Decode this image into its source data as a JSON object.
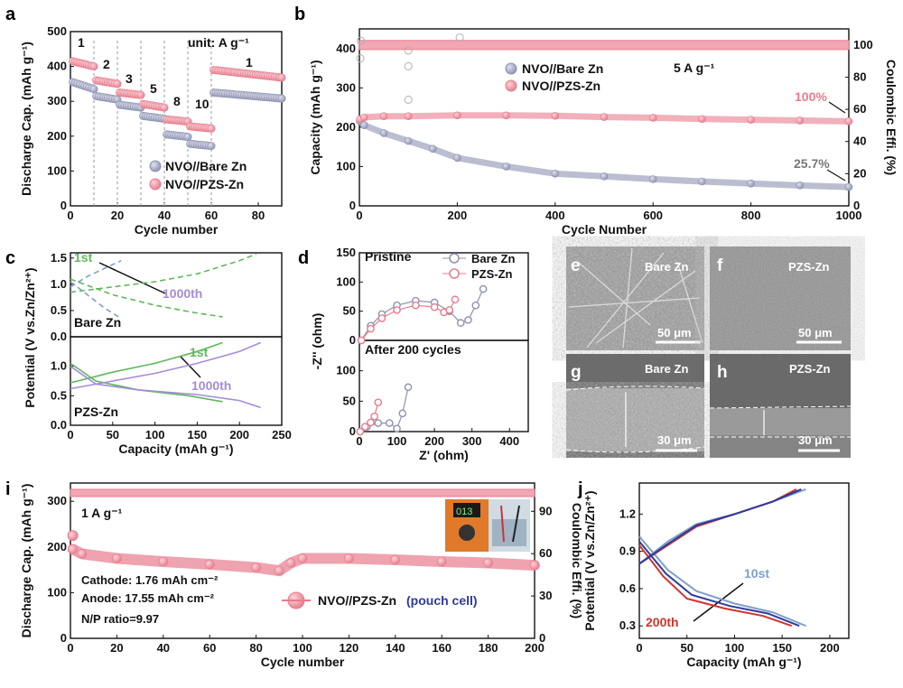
{
  "colors": {
    "pink": "#e77c8d",
    "gray": "#8e93b0",
    "green": "#5fb85a",
    "lavender": "#a58cd6",
    "slate": "#7fa0c8",
    "darkred": "#d0342c",
    "navy": "#2e3a9e"
  },
  "panels": {
    "a": {
      "letter": "a",
      "unit": "unit: A g⁻¹",
      "rates": [
        "1",
        "2",
        "3",
        "5",
        "8",
        "10",
        "1"
      ]
    },
    "b": {
      "letter": "b",
      "rate_note": "5 A g⁻¹",
      "pct_pzs": "100%",
      "pct_bare": "25.7%"
    },
    "c": {
      "letter": "c",
      "top_label": "Bare Zn",
      "bottom_label": "PZS-Zn",
      "first": "1st",
      "last": "1000th"
    },
    "d": {
      "letter": "d",
      "top_label": "Pristine",
      "bottom_label": "After 200 cycles"
    },
    "sem": {
      "e": {
        "letter": "e",
        "caption": "Bare Zn",
        "scale": "50 μm"
      },
      "f": {
        "letter": "f",
        "caption": "PZS-Zn",
        "scale": "50 μm"
      },
      "g": {
        "letter": "g",
        "caption": "Bare Zn",
        "scale": "30 μm"
      },
      "h": {
        "letter": "h",
        "caption": "PZS-Zn",
        "scale": "30 μm"
      }
    },
    "i": {
      "letter": "i",
      "rate_note": "1 A g⁻¹",
      "cathode": "Cathode: 1.76 mAh cm⁻²",
      "anode": "Anode: 17.55 mAh cm⁻²",
      "np": "N/P ratio=9.97",
      "legend_main": "NVO//PZS-Zn",
      "legend_sub": "(pouch cell)"
    },
    "j": {
      "letter": "j",
      "first": "10st",
      "last": "200th"
    }
  },
  "chart_data": [
    {
      "id": "a",
      "type": "scatter",
      "xlabel": "Cycle number",
      "ylabel": "Discharge Cap. (mAh g⁻¹)",
      "xlim": [
        0,
        90
      ],
      "ylim": [
        0,
        500
      ],
      "xticks": [
        0,
        20,
        40,
        60,
        80
      ],
      "yticks": [
        0,
        100,
        200,
        300,
        400,
        500
      ],
      "segments": [
        {
          "rate": "1",
          "from": 1,
          "to": 10
        },
        {
          "rate": "2",
          "from": 11,
          "to": 20
        },
        {
          "rate": "3",
          "from": 21,
          "to": 30
        },
        {
          "rate": "5",
          "from": 31,
          "to": 40
        },
        {
          "rate": "8",
          "from": 41,
          "to": 50
        },
        {
          "rate": "10",
          "from": 51,
          "to": 60
        },
        {
          "rate": "1",
          "from": 61,
          "to": 90
        }
      ],
      "series": [
        {
          "name": "NVO//Bare Zn",
          "color": "#8e93b0",
          "levels": [
            [
              355,
              335
            ],
            [
              315,
              305
            ],
            [
              290,
              282
            ],
            [
              258,
              250
            ],
            [
              205,
              198
            ],
            [
              178,
              172
            ],
            [
              325,
              308
            ]
          ]
        },
        {
          "name": "NVO//PZS-Zn",
          "color": "#e77c8d",
          "levels": [
            [
              415,
              400
            ],
            [
              360,
              350
            ],
            [
              325,
              318
            ],
            [
              292,
              282
            ],
            [
              248,
              242
            ],
            [
              228,
              222
            ],
            [
              390,
              368
            ]
          ]
        }
      ]
    },
    {
      "id": "b",
      "type": "scatter",
      "xlabel": "Cycle Number",
      "ylabel": "Capacity (mAh g⁻¹)",
      "y2label": "Coulombic Effi. (%)",
      "xlim": [
        0,
        1000
      ],
      "ylim": [
        0,
        450
      ],
      "y2lim": [
        0,
        110
      ],
      "xticks": [
        0,
        200,
        400,
        600,
        800,
        1000
      ],
      "yticks": [
        0,
        100,
        200,
        300,
        400
      ],
      "y2ticks": [
        0,
        20,
        40,
        60,
        80,
        100
      ],
      "series": [
        {
          "name": "NVO//Bare Zn",
          "color": "#8e93b0",
          "x": [
            1,
            10,
            50,
            100,
            150,
            200,
            300,
            400,
            500,
            600,
            700,
            800,
            900,
            1000
          ],
          "y": [
            215,
            205,
            185,
            165,
            145,
            122,
            100,
            82,
            75,
            68,
            62,
            57,
            52,
            48
          ]
        },
        {
          "name": "NVO//PZS-Zn",
          "color": "#e77c8d",
          "x": [
            1,
            10,
            50,
            100,
            200,
            300,
            400,
            500,
            600,
            700,
            800,
            900,
            1000
          ],
          "y": [
            220,
            225,
            228,
            228,
            230,
            230,
            229,
            226,
            224,
            221,
            219,
            217,
            215
          ]
        },
        {
          "name": "CE",
          "axis": "y2",
          "color": "#e77c8d",
          "value": 100
        }
      ],
      "outliers": [
        {
          "x": 2,
          "y": 375
        },
        {
          "x": 3,
          "y": 420
        },
        {
          "x": 100,
          "y": 395
        },
        {
          "x": 100,
          "y": 355
        },
        {
          "x": 100,
          "y": 270
        },
        {
          "x": 205,
          "y": 428
        }
      ]
    },
    {
      "id": "c",
      "type": "line",
      "xlabel": "Capacity (mAh g⁻¹)",
      "ylabel": "Potential (V vs.Zn/Zn²⁺)",
      "xlim": [
        0,
        250
      ],
      "ylim": [
        0,
        1.5
      ],
      "xticks": [
        0,
        50,
        100,
        150,
        200,
        250
      ],
      "yticks": [
        0.0,
        0.5,
        1.0,
        1.5
      ],
      "series": [
        {
          "name": "Bare Zn 1st charge",
          "color": "#7fa0c8",
          "x": [
            0,
            20,
            40,
            60
          ],
          "y": [
            0.95,
            1.15,
            1.3,
            1.45
          ]
        },
        {
          "name": "Bare Zn 1st discharge",
          "color": "#7fa0c8",
          "x": [
            0,
            20,
            40,
            60
          ],
          "y": [
            1.05,
            0.8,
            0.55,
            0.35
          ]
        },
        {
          "name": "Bare Zn 1000th charge",
          "color": "#5fb85a",
          "x": [
            0,
            50,
            100,
            150,
            200,
            220
          ],
          "y": [
            0.85,
            0.95,
            1.05,
            1.2,
            1.45,
            1.58
          ]
        },
        {
          "name": "Bare Zn 1000th discharge",
          "color": "#5fb85a",
          "x": [
            0,
            50,
            100,
            150,
            180
          ],
          "y": [
            1.1,
            0.8,
            0.6,
            0.45,
            0.38
          ]
        },
        {
          "name": "PZS-Zn 1st charge",
          "color": "#5fb85a",
          "x": [
            0,
            50,
            100,
            150,
            180
          ],
          "y": [
            0.72,
            0.9,
            1.05,
            1.25,
            1.4
          ]
        },
        {
          "name": "PZS-Zn 1st discharge",
          "color": "#5fb85a",
          "x": [
            0,
            30,
            80,
            140,
            180
          ],
          "y": [
            1.05,
            0.75,
            0.6,
            0.5,
            0.4
          ]
        },
        {
          "name": "PZS-Zn 1000th charge",
          "color": "#a58cd6",
          "x": [
            0,
            50,
            100,
            150,
            200,
            225
          ],
          "y": [
            0.62,
            0.75,
            0.88,
            1.05,
            1.25,
            1.4
          ]
        },
        {
          "name": "PZS-Zn 1000th discharge",
          "color": "#a58cd6",
          "x": [
            0,
            30,
            80,
            150,
            200,
            225
          ],
          "y": [
            1.0,
            0.7,
            0.6,
            0.52,
            0.42,
            0.3
          ]
        }
      ]
    },
    {
      "id": "d",
      "type": "scatter",
      "xlabel": "Z' (ohm)",
      "ylabel": "-Z'' (ohm)",
      "xlim": [
        0,
        450
      ],
      "ylim": [
        0,
        150
      ],
      "xticks": [
        0,
        100,
        200,
        300,
        400
      ],
      "yticks": [
        0,
        50,
        100,
        150
      ],
      "legend": [
        "Bare Zn",
        "PZS-Zn"
      ],
      "series": [
        {
          "name": "Bare Zn (Pristine)",
          "color": "#8e93b0",
          "x": [
            5,
            30,
            60,
            100,
            150,
            200,
            240,
            270,
            290,
            310,
            330
          ],
          "y": [
            0,
            25,
            45,
            60,
            68,
            65,
            50,
            30,
            35,
            60,
            88
          ]
        },
        {
          "name": "PZS-Zn (Pristine)",
          "color": "#e77c8d",
          "x": [
            5,
            30,
            60,
            100,
            150,
            200,
            225,
            240,
            255
          ],
          "y": [
            0,
            20,
            38,
            52,
            60,
            57,
            48,
            52,
            70
          ]
        },
        {
          "name": "Bare Zn (200 cycles)",
          "color": "#8e93b0",
          "x": [
            2,
            20,
            50,
            80,
            100,
            115,
            130
          ],
          "y": [
            0,
            8,
            14,
            14,
            5,
            30,
            73
          ]
        },
        {
          "name": "PZS-Zn (200 cycles)",
          "color": "#e77c8d",
          "x": [
            2,
            15,
            30,
            40,
            50
          ],
          "y": [
            0,
            8,
            15,
            25,
            48
          ]
        }
      ]
    },
    {
      "id": "i",
      "type": "scatter",
      "xlabel": "Cycle number",
      "ylabel": "Discharge Cap. (mAh g⁻¹)",
      "y2label": "Coulombic Effi. (%)",
      "xlim": [
        0,
        200
      ],
      "ylim": [
        0,
        340
      ],
      "y2lim": [
        0,
        110
      ],
      "xticks": [
        0,
        20,
        40,
        60,
        80,
        100,
        120,
        140,
        160,
        180,
        200
      ],
      "yticks": [
        0,
        100,
        200,
        300
      ],
      "y2ticks": [
        0,
        30,
        60,
        90
      ],
      "series": [
        {
          "name": "NVO//PZS-Zn",
          "color": "#e77c8d",
          "x": [
            1,
            5,
            20,
            40,
            60,
            80,
            90,
            95,
            100,
            120,
            140,
            160,
            180,
            200
          ],
          "y": [
            195,
            185,
            175,
            168,
            162,
            155,
            148,
            165,
            175,
            175,
            172,
            168,
            165,
            160
          ]
        },
        {
          "name": "CE",
          "axis": "y2",
          "color": "#e77c8d",
          "value": 103
        }
      ],
      "outliers": [
        {
          "x": 1,
          "y": 225
        }
      ]
    },
    {
      "id": "j",
      "type": "line",
      "xlabel": "Capacity (mAh g⁻¹)",
      "ylabel": "Potential (V vs.Zn/Zn²⁺)",
      "xlim": [
        0,
        220
      ],
      "ylim": [
        0.2,
        1.45
      ],
      "xticks": [
        0,
        50,
        100,
        150,
        200
      ],
      "yticks": [
        0.3,
        0.6,
        0.9,
        1.2
      ],
      "series": [
        {
          "name": "10st charge",
          "color": "#7fa0c8",
          "x": [
            0,
            30,
            60,
            100,
            140,
            175
          ],
          "y": [
            0.8,
            0.98,
            1.12,
            1.2,
            1.3,
            1.4
          ]
        },
        {
          "name": "10st discharge",
          "color": "#7fa0c8",
          "x": [
            0,
            30,
            60,
            100,
            140,
            175
          ],
          "y": [
            1.02,
            0.75,
            0.58,
            0.48,
            0.41,
            0.3
          ]
        },
        {
          "name": "200th charge",
          "color": "#d0342c",
          "x": [
            0,
            30,
            60,
            100,
            140,
            165
          ],
          "y": [
            0.8,
            0.95,
            1.1,
            1.2,
            1.3,
            1.4
          ]
        },
        {
          "name": "200th discharge",
          "color": "#d0342c",
          "x": [
            0,
            25,
            50,
            90,
            130,
            160
          ],
          "y": [
            0.95,
            0.7,
            0.52,
            0.44,
            0.38,
            0.3
          ]
        },
        {
          "name": "mid charge",
          "color": "#2e3a9e",
          "x": [
            0,
            30,
            60,
            100,
            140,
            170
          ],
          "y": [
            0.8,
            0.96,
            1.11,
            1.2,
            1.3,
            1.4
          ]
        },
        {
          "name": "mid discharge",
          "color": "#2e3a9e",
          "x": [
            0,
            28,
            55,
            95,
            135,
            168
          ],
          "y": [
            0.98,
            0.72,
            0.55,
            0.46,
            0.4,
            0.3
          ]
        }
      ]
    }
  ]
}
